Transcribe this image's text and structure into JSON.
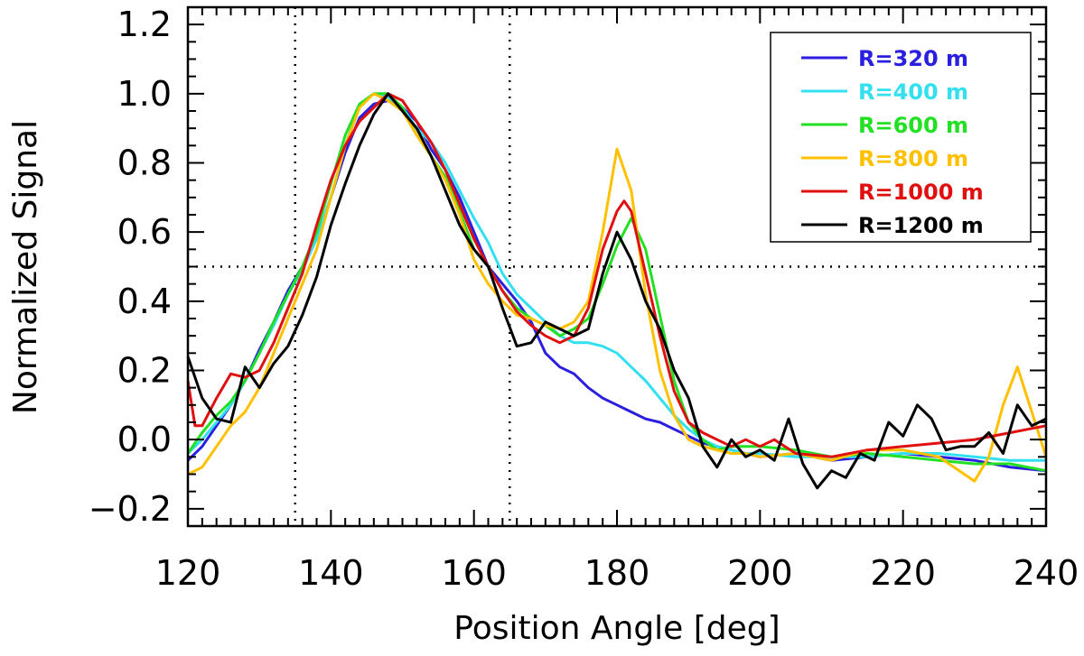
{
  "chart_data": {
    "type": "line",
    "title": "",
    "xlabel": "Position Angle [deg]",
    "ylabel": "Normalized Signal",
    "xlim": [
      120,
      240
    ],
    "ylim": [
      -0.25,
      1.25
    ],
    "xticks": [
      120,
      140,
      160,
      180,
      200,
      220,
      240
    ],
    "xtick_labels": [
      "120",
      "140",
      "160",
      "180",
      "200",
      "220",
      "240"
    ],
    "yticks": [
      -0.2,
      0.0,
      0.2,
      0.4,
      0.6,
      0.8,
      1.0,
      1.2
    ],
    "ytick_labels": [
      "−0.2",
      "0.0",
      "0.2",
      "0.4",
      "0.6",
      "0.8",
      "1.0",
      "1.2"
    ],
    "reference_lines": {
      "vertical_x": [
        135,
        165
      ],
      "horizontal_y": [
        0.5
      ],
      "style": "dotted"
    },
    "legend_position": "top-right",
    "series": [
      {
        "name": "R=320 m",
        "color": "#2a1ee0",
        "x": [
          120,
          122,
          124,
          126,
          128,
          130,
          132,
          134,
          136,
          138,
          140,
          142,
          144,
          146,
          148,
          150,
          152,
          154,
          156,
          158,
          160,
          162,
          164,
          166,
          168,
          170,
          172,
          174,
          176,
          178,
          180,
          182,
          184,
          186,
          188,
          190,
          192,
          194,
          196,
          198,
          200,
          205,
          210,
          215,
          220,
          225,
          230,
          235,
          240
        ],
        "y": [
          -0.06,
          -0.02,
          0.04,
          0.1,
          0.17,
          0.26,
          0.34,
          0.43,
          0.5,
          0.58,
          0.7,
          0.83,
          0.93,
          0.97,
          0.98,
          0.96,
          0.92,
          0.84,
          0.78,
          0.7,
          0.6,
          0.5,
          0.45,
          0.4,
          0.34,
          0.25,
          0.21,
          0.19,
          0.15,
          0.12,
          0.1,
          0.08,
          0.06,
          0.05,
          0.03,
          0.01,
          -0.01,
          -0.02,
          -0.03,
          -0.04,
          -0.05,
          -0.04,
          -0.06,
          -0.05,
          -0.04,
          -0.05,
          -0.06,
          -0.08,
          -0.09
        ]
      },
      {
        "name": "R=400 m",
        "color": "#33e0f0",
        "x": [
          120,
          122,
          124,
          126,
          128,
          130,
          132,
          134,
          136,
          138,
          140,
          142,
          144,
          146,
          148,
          150,
          152,
          154,
          156,
          158,
          160,
          162,
          164,
          166,
          168,
          170,
          172,
          174,
          176,
          178,
          180,
          182,
          184,
          186,
          188,
          190,
          192,
          194,
          196,
          198,
          200,
          205,
          210,
          215,
          220,
          225,
          230,
          235,
          240
        ],
        "y": [
          -0.04,
          0.0,
          0.05,
          0.1,
          0.17,
          0.25,
          0.33,
          0.42,
          0.49,
          0.58,
          0.7,
          0.85,
          0.97,
          1.0,
          0.99,
          0.96,
          0.9,
          0.86,
          0.8,
          0.72,
          0.64,
          0.57,
          0.48,
          0.42,
          0.38,
          0.34,
          0.3,
          0.28,
          0.28,
          0.27,
          0.25,
          0.21,
          0.17,
          0.12,
          0.07,
          0.03,
          0.0,
          -0.02,
          -0.03,
          -0.04,
          -0.04,
          -0.05,
          -0.05,
          -0.05,
          -0.04,
          -0.04,
          -0.05,
          -0.06,
          -0.06
        ]
      },
      {
        "name": "R=600 m",
        "color": "#22e022",
        "x": [
          120,
          122,
          124,
          126,
          128,
          130,
          132,
          134,
          136,
          138,
          140,
          142,
          144,
          146,
          148,
          150,
          152,
          154,
          156,
          158,
          160,
          162,
          164,
          166,
          168,
          170,
          172,
          174,
          176,
          178,
          180,
          182,
          184,
          186,
          188,
          190,
          192,
          194,
          196,
          198,
          200,
          205,
          210,
          215,
          220,
          225,
          230,
          235,
          240
        ],
        "y": [
          -0.04,
          0.02,
          0.07,
          0.11,
          0.17,
          0.25,
          0.34,
          0.42,
          0.5,
          0.6,
          0.74,
          0.88,
          0.97,
          1.0,
          1.0,
          0.96,
          0.88,
          0.82,
          0.76,
          0.66,
          0.55,
          0.5,
          0.43,
          0.38,
          0.35,
          0.33,
          0.3,
          0.32,
          0.35,
          0.45,
          0.56,
          0.64,
          0.55,
          0.36,
          0.17,
          0.05,
          0.0,
          -0.03,
          -0.02,
          -0.02,
          -0.02,
          -0.03,
          -0.05,
          -0.04,
          -0.05,
          -0.06,
          -0.07,
          -0.07,
          -0.09
        ]
      },
      {
        "name": "R=800 m",
        "color": "#ffc000",
        "x": [
          120,
          122,
          124,
          126,
          128,
          130,
          132,
          134,
          136,
          138,
          140,
          142,
          144,
          146,
          148,
          150,
          152,
          154,
          156,
          158,
          160,
          162,
          164,
          166,
          168,
          170,
          172,
          174,
          176,
          178,
          180,
          182,
          184,
          186,
          188,
          190,
          192,
          194,
          196,
          198,
          200,
          205,
          210,
          215,
          220,
          225,
          230,
          232,
          234,
          236,
          238,
          240
        ],
        "y": [
          -0.1,
          -0.08,
          -0.02,
          0.04,
          0.08,
          0.15,
          0.25,
          0.35,
          0.45,
          0.55,
          0.7,
          0.85,
          0.96,
          1.0,
          0.98,
          0.95,
          0.88,
          0.82,
          0.75,
          0.65,
          0.52,
          0.45,
          0.4,
          0.36,
          0.35,
          0.33,
          0.32,
          0.34,
          0.4,
          0.6,
          0.84,
          0.72,
          0.42,
          0.2,
          0.07,
          0.0,
          -0.02,
          -0.03,
          -0.04,
          -0.04,
          -0.05,
          -0.04,
          -0.06,
          -0.03,
          -0.03,
          -0.05,
          -0.12,
          -0.05,
          0.1,
          0.21,
          0.08,
          -0.05
        ]
      },
      {
        "name": "R=1000 m",
        "color": "#e01010",
        "x": [
          120,
          121,
          122,
          124,
          126,
          128,
          130,
          132,
          134,
          136,
          138,
          140,
          142,
          144,
          146,
          148,
          150,
          152,
          154,
          156,
          158,
          160,
          162,
          164,
          166,
          168,
          170,
          172,
          174,
          176,
          178,
          180,
          181,
          182,
          184,
          186,
          188,
          190,
          192,
          194,
          196,
          198,
          200,
          202,
          205,
          210,
          215,
          220,
          225,
          230,
          235,
          240
        ],
        "y": [
          0.17,
          0.04,
          0.04,
          0.12,
          0.19,
          0.18,
          0.2,
          0.28,
          0.38,
          0.48,
          0.62,
          0.75,
          0.85,
          0.92,
          0.96,
          1.0,
          0.98,
          0.92,
          0.86,
          0.78,
          0.68,
          0.58,
          0.5,
          0.43,
          0.37,
          0.33,
          0.3,
          0.28,
          0.3,
          0.38,
          0.55,
          0.66,
          0.69,
          0.66,
          0.48,
          0.3,
          0.14,
          0.05,
          0.02,
          0.0,
          -0.02,
          0.0,
          -0.02,
          0.0,
          -0.04,
          -0.05,
          -0.03,
          -0.02,
          -0.01,
          0.0,
          0.02,
          0.04
        ]
      },
      {
        "name": "R=1200 m",
        "color": "#000000",
        "x": [
          120,
          122,
          124,
          126,
          128,
          130,
          132,
          134,
          136,
          138,
          140,
          142,
          144,
          146,
          148,
          150,
          152,
          154,
          156,
          158,
          160,
          162,
          164,
          166,
          168,
          170,
          172,
          174,
          176,
          178,
          180,
          182,
          184,
          186,
          188,
          190,
          192,
          194,
          196,
          198,
          200,
          202,
          204,
          206,
          208,
          210,
          212,
          214,
          216,
          218,
          220,
          222,
          224,
          226,
          228,
          230,
          232,
          234,
          236,
          238,
          240
        ],
        "y": [
          0.24,
          0.12,
          0.06,
          0.05,
          0.21,
          0.15,
          0.22,
          0.27,
          0.36,
          0.47,
          0.62,
          0.74,
          0.85,
          0.94,
          1.0,
          0.95,
          0.9,
          0.82,
          0.72,
          0.62,
          0.55,
          0.5,
          0.38,
          0.27,
          0.28,
          0.34,
          0.32,
          0.3,
          0.32,
          0.48,
          0.6,
          0.52,
          0.4,
          0.32,
          0.2,
          0.12,
          -0.02,
          -0.08,
          0.0,
          -0.05,
          -0.03,
          -0.06,
          0.06,
          -0.07,
          -0.14,
          -0.09,
          -0.11,
          -0.04,
          -0.06,
          0.05,
          0.01,
          0.1,
          0.06,
          -0.03,
          -0.02,
          -0.02,
          0.02,
          -0.04,
          0.1,
          0.04,
          0.06
        ]
      }
    ]
  }
}
